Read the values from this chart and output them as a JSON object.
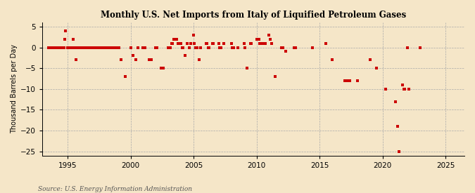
{
  "title": "Monthly U.S. Net Imports from Italy of Liquified Petroleum Gases",
  "ylabel": "Thousand Barrels per Day",
  "source": "Source: U.S. Energy Information Administration",
  "background_color": "#f5e6c8",
  "plot_background_color": "#f5e6c8",
  "marker_color": "#cc0000",
  "xlim": [
    1993.0,
    2026.5
  ],
  "ylim": [
    -26,
    6
  ],
  "yticks": [
    5,
    0,
    -5,
    -10,
    -15,
    -20,
    -25
  ],
  "xticks": [
    1995,
    2000,
    2005,
    2010,
    2015,
    2020,
    2025
  ],
  "data_points": [
    [
      1993.5,
      0
    ],
    [
      1993.6,
      0
    ],
    [
      1993.7,
      0
    ],
    [
      1993.8,
      0
    ],
    [
      1993.9,
      0
    ],
    [
      1994.0,
      0
    ],
    [
      1994.1,
      0
    ],
    [
      1994.2,
      0
    ],
    [
      1994.3,
      0
    ],
    [
      1994.4,
      0
    ],
    [
      1994.5,
      0
    ],
    [
      1994.6,
      0
    ],
    [
      1994.7,
      0
    ],
    [
      1994.75,
      2
    ],
    [
      1994.83,
      4
    ],
    [
      1995.0,
      0
    ],
    [
      1995.1,
      0
    ],
    [
      1995.2,
      0
    ],
    [
      1995.3,
      0
    ],
    [
      1995.4,
      0
    ],
    [
      1995.5,
      0
    ],
    [
      1995.6,
      0
    ],
    [
      1995.7,
      0
    ],
    [
      1995.8,
      0
    ],
    [
      1995.9,
      0
    ],
    [
      1995.42,
      2
    ],
    [
      1995.67,
      -3
    ],
    [
      1996.0,
      0
    ],
    [
      1996.1,
      0
    ],
    [
      1996.2,
      0
    ],
    [
      1996.3,
      0
    ],
    [
      1996.4,
      0
    ],
    [
      1996.5,
      0
    ],
    [
      1996.6,
      0
    ],
    [
      1996.7,
      0
    ],
    [
      1996.8,
      0
    ],
    [
      1996.9,
      0
    ],
    [
      1997.0,
      0
    ],
    [
      1997.1,
      0
    ],
    [
      1997.2,
      0
    ],
    [
      1997.3,
      0
    ],
    [
      1997.4,
      0
    ],
    [
      1997.5,
      0
    ],
    [
      1997.6,
      0
    ],
    [
      1997.7,
      0
    ],
    [
      1997.8,
      0
    ],
    [
      1997.9,
      0
    ],
    [
      1998.0,
      0
    ],
    [
      1998.1,
      0
    ],
    [
      1998.2,
      0
    ],
    [
      1998.3,
      0
    ],
    [
      1998.4,
      0
    ],
    [
      1998.5,
      0
    ],
    [
      1998.6,
      0
    ],
    [
      1998.7,
      0
    ],
    [
      1998.8,
      0
    ],
    [
      1998.9,
      0
    ],
    [
      1999.0,
      0
    ],
    [
      1999.1,
      0
    ],
    [
      1999.25,
      -3
    ],
    [
      1999.58,
      -7
    ],
    [
      2000.0,
      0
    ],
    [
      2000.17,
      -2
    ],
    [
      2000.42,
      -3
    ],
    [
      2000.58,
      0
    ],
    [
      2001.0,
      0
    ],
    [
      2001.08,
      0
    ],
    [
      2001.17,
      0
    ],
    [
      2001.5,
      -3
    ],
    [
      2001.67,
      -3
    ],
    [
      2002.0,
      0
    ],
    [
      2002.08,
      0
    ],
    [
      2002.42,
      -5
    ],
    [
      2002.58,
      -5
    ],
    [
      2003.0,
      0
    ],
    [
      2003.08,
      0
    ],
    [
      2003.17,
      0
    ],
    [
      2003.25,
      1
    ],
    [
      2003.33,
      1
    ],
    [
      2003.42,
      2
    ],
    [
      2003.5,
      2
    ],
    [
      2003.58,
      2
    ],
    [
      2003.67,
      2
    ],
    [
      2003.75,
      1
    ],
    [
      2003.83,
      1
    ],
    [
      2004.0,
      1
    ],
    [
      2004.08,
      0
    ],
    [
      2004.17,
      0
    ],
    [
      2004.33,
      -2
    ],
    [
      2004.5,
      1
    ],
    [
      2004.67,
      0
    ],
    [
      2004.75,
      1
    ],
    [
      2005.0,
      3
    ],
    [
      2005.08,
      1
    ],
    [
      2005.17,
      0
    ],
    [
      2005.25,
      0
    ],
    [
      2005.42,
      -3
    ],
    [
      2005.58,
      0
    ],
    [
      2006.0,
      1
    ],
    [
      2006.08,
      1
    ],
    [
      2006.17,
      0
    ],
    [
      2006.25,
      0
    ],
    [
      2006.5,
      1
    ],
    [
      2006.58,
      1
    ],
    [
      2007.0,
      1
    ],
    [
      2007.08,
      0
    ],
    [
      2007.17,
      0
    ],
    [
      2007.42,
      1
    ],
    [
      2008.0,
      1
    ],
    [
      2008.08,
      0
    ],
    [
      2008.17,
      0
    ],
    [
      2008.5,
      0
    ],
    [
      2009.0,
      1
    ],
    [
      2009.08,
      0
    ],
    [
      2009.25,
      -5
    ],
    [
      2009.5,
      1
    ],
    [
      2009.58,
      1
    ],
    [
      2010.0,
      2
    ],
    [
      2010.08,
      2
    ],
    [
      2010.17,
      2
    ],
    [
      2010.25,
      1
    ],
    [
      2010.33,
      1
    ],
    [
      2010.5,
      1
    ],
    [
      2010.58,
      1
    ],
    [
      2010.67,
      1
    ],
    [
      2011.0,
      3
    ],
    [
      2011.08,
      2
    ],
    [
      2011.17,
      1
    ],
    [
      2011.5,
      -7
    ],
    [
      2012.0,
      0
    ],
    [
      2012.08,
      0
    ],
    [
      2012.33,
      -1
    ],
    [
      2013.0,
      0
    ],
    [
      2013.08,
      0
    ],
    [
      2014.42,
      0
    ],
    [
      2015.5,
      1
    ],
    [
      2016.0,
      -3
    ],
    [
      2017.0,
      -8
    ],
    [
      2017.25,
      -8
    ],
    [
      2017.42,
      -8
    ],
    [
      2018.0,
      -8
    ],
    [
      2019.0,
      -3
    ],
    [
      2019.5,
      -5
    ],
    [
      2020.25,
      -10
    ],
    [
      2021.0,
      -13
    ],
    [
      2021.17,
      -19
    ],
    [
      2021.33,
      -25
    ],
    [
      2021.58,
      -9
    ],
    [
      2021.67,
      -10
    ],
    [
      2021.75,
      -10
    ],
    [
      2022.0,
      0
    ],
    [
      2022.08,
      -10
    ],
    [
      2023.0,
      0
    ]
  ]
}
